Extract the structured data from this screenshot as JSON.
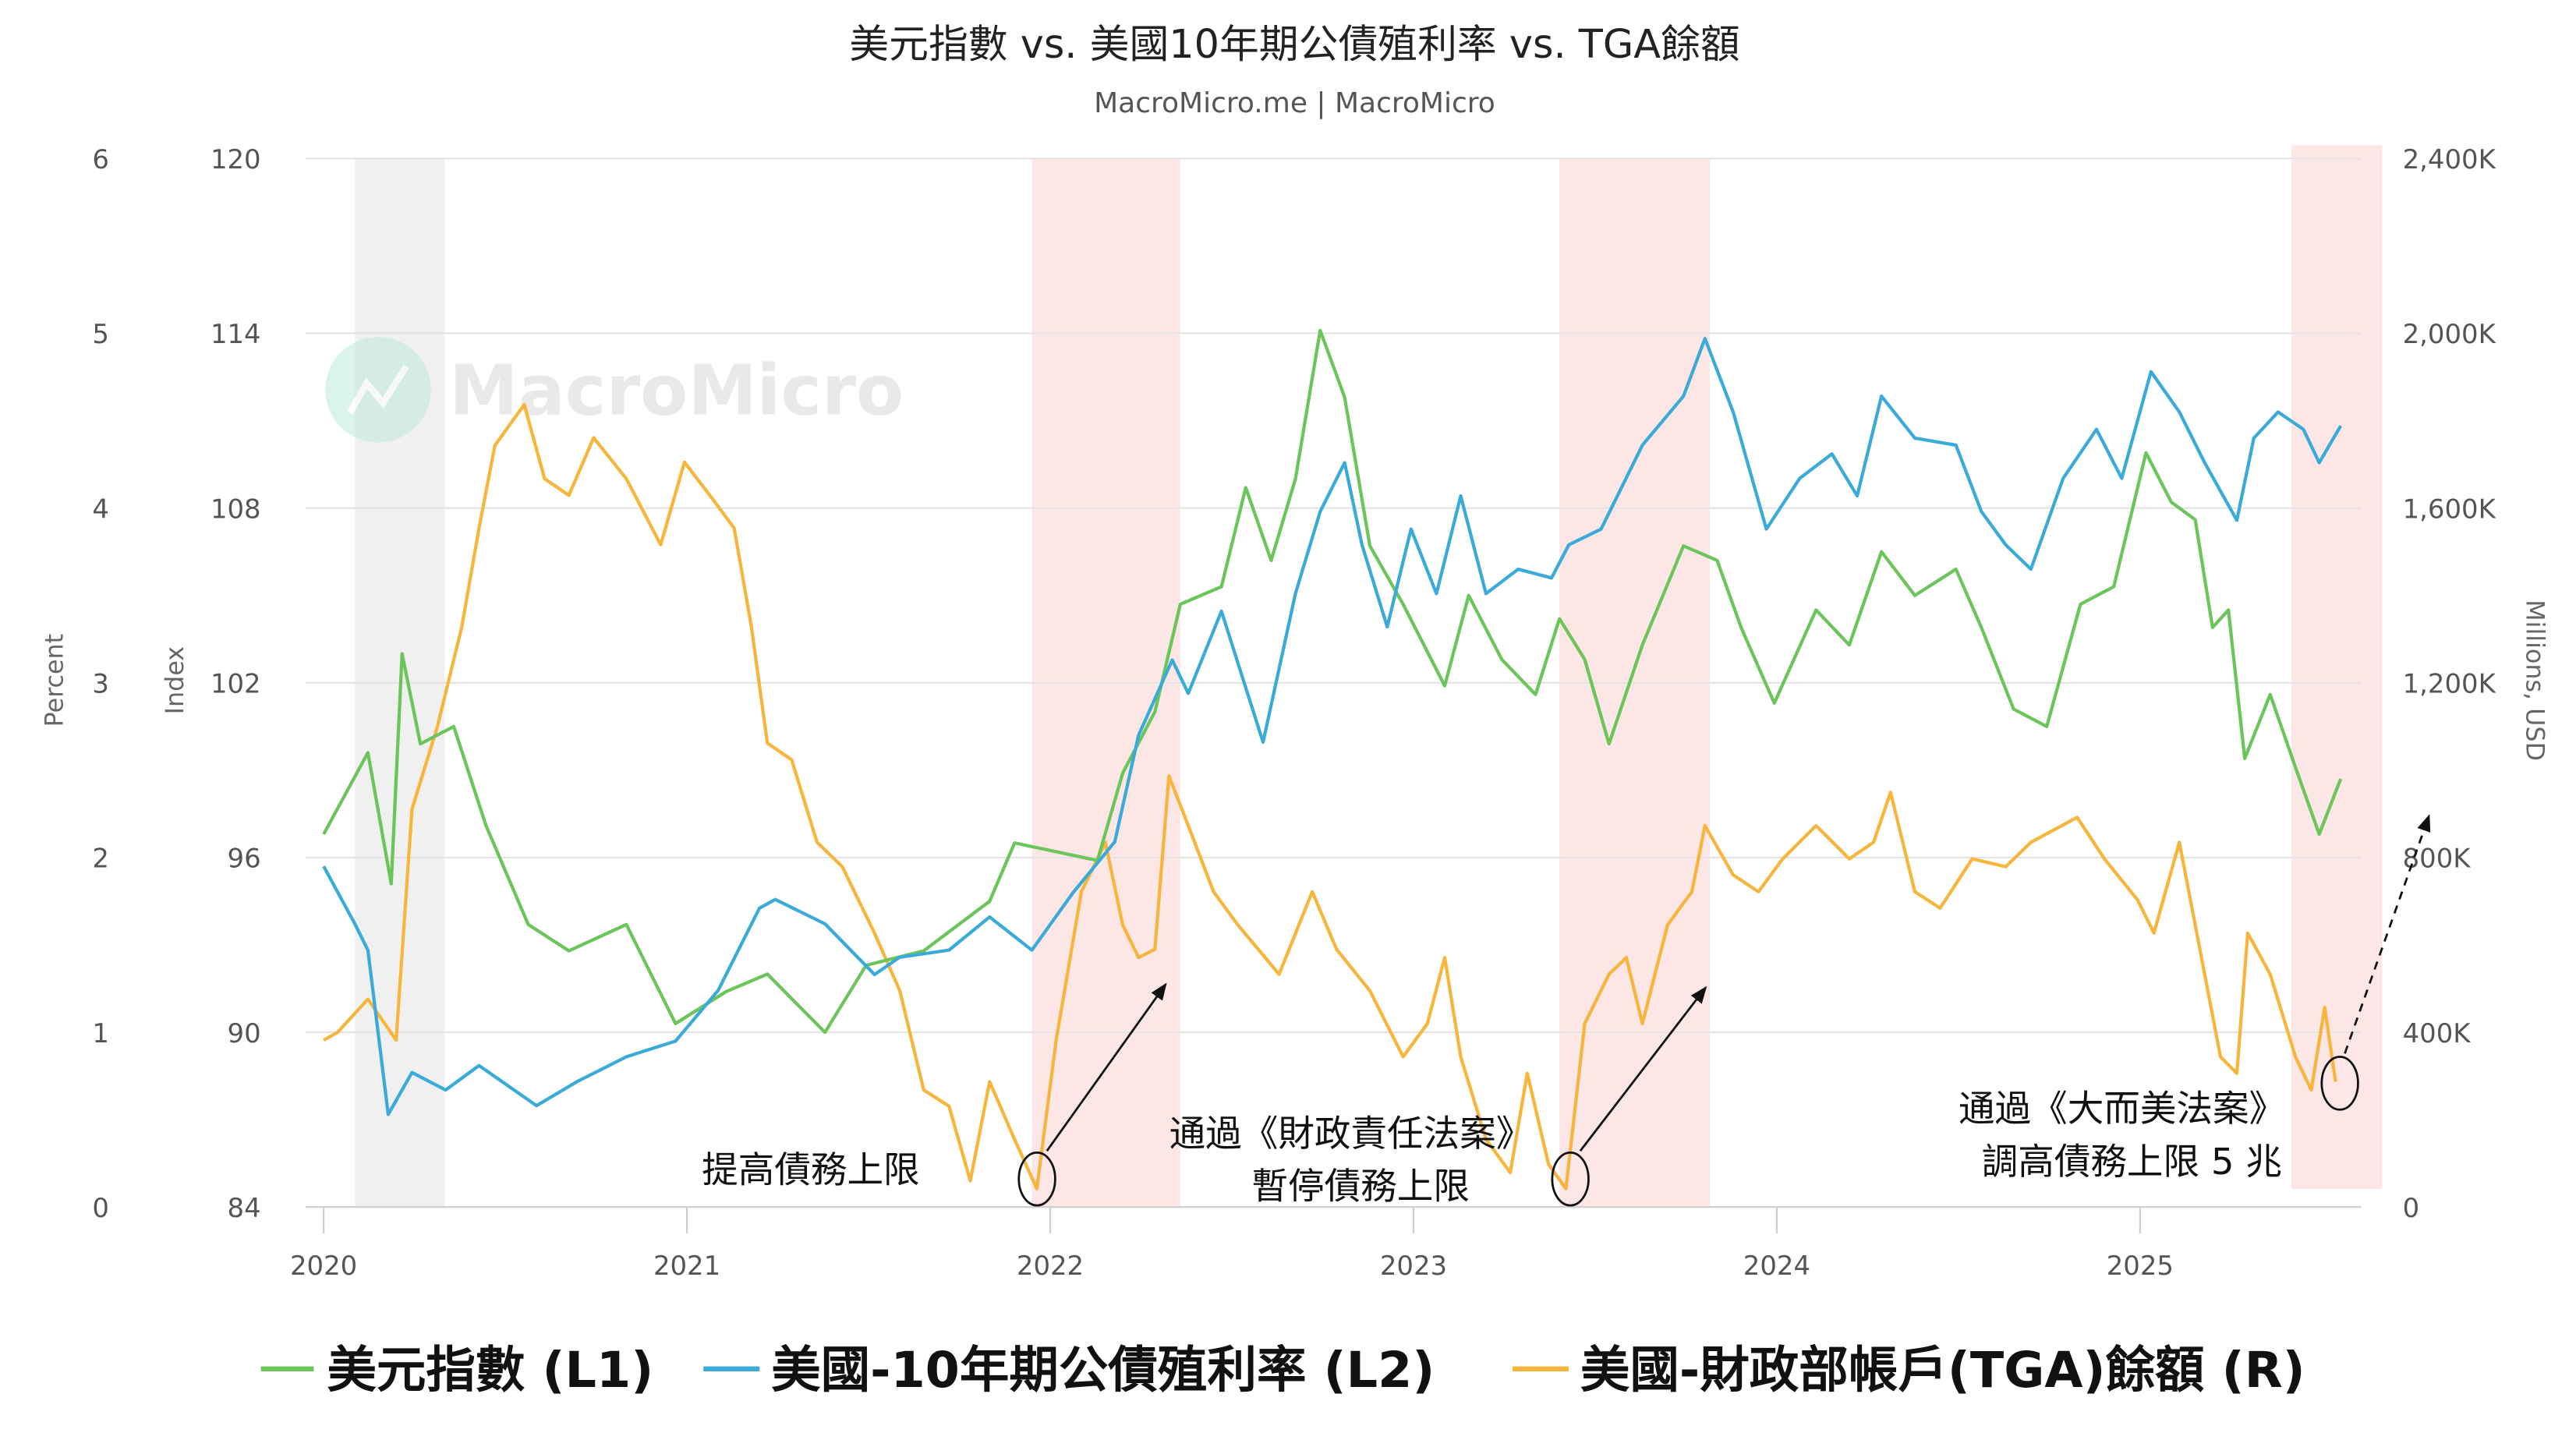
{
  "chart_data": {
    "type": "line",
    "title": "美元指數 vs. 美國10年期公債殖利率 vs. TGA餘額",
    "subtitle": "MacroMicro.me | MacroMicro",
    "watermark": "MacroMicro",
    "grid": true,
    "legend_position": "bottom",
    "x_axis": {
      "type": "date",
      "ticks": [
        "2020",
        "2021",
        "2022",
        "2023",
        "2024",
        "2025"
      ]
    },
    "axes": {
      "percent": {
        "label": "Percent",
        "range": [
          0,
          6
        ],
        "ticks": [
          "0",
          "1",
          "2",
          "3",
          "4",
          "5",
          "6"
        ]
      },
      "index": {
        "label": "Index",
        "range": [
          84,
          120
        ],
        "ticks": [
          "84",
          "90",
          "96",
          "102",
          "108",
          "114",
          "120"
        ]
      },
      "right": {
        "label": "Millions, USD",
        "range": [
          0,
          2400000
        ],
        "ticks": [
          "0",
          "400K",
          "800K",
          "1,200K",
          "1,600K",
          "2,000K",
          "2,400K"
        ]
      }
    },
    "shaded_periods": [
      {
        "start": "2020-02-02",
        "end": "2020-05-01",
        "color": "#f0f0f0"
      },
      {
        "start": "2021-12-13",
        "end": "2022-05-10",
        "color": "#fde6e6"
      },
      {
        "start": "2023-05-26",
        "end": "2023-10-25",
        "color": "#fde6e6"
      },
      {
        "start": "2025-06-01",
        "end": "2025-09-01",
        "color": "#fde6e6"
      }
    ],
    "series": [
      {
        "name": "美元指數 (L1)",
        "legend": "美元指數 (L1)",
        "axis": "index",
        "color": "#6cc55a",
        "points": [
          [
            "2020-01-01",
            96.8
          ],
          [
            "2020-02-15",
            99.6
          ],
          [
            "2020-03-08",
            95.1
          ],
          [
            "2020-03-19",
            103.0
          ],
          [
            "2020-04-07",
            99.9
          ],
          [
            "2020-05-10",
            100.5
          ],
          [
            "2020-06-12",
            97.1
          ],
          [
            "2020-07-24",
            93.7
          ],
          [
            "2020-09-04",
            92.8
          ],
          [
            "2020-11-01",
            93.7
          ],
          [
            "2020-12-20",
            90.3
          ],
          [
            "2021-02-10",
            91.4
          ],
          [
            "2021-03-21",
            92.0
          ],
          [
            "2021-05-18",
            90.0
          ],
          [
            "2021-06-29",
            92.3
          ],
          [
            "2021-08-26",
            92.8
          ],
          [
            "2021-11-01",
            94.5
          ],
          [
            "2021-11-26",
            96.5
          ],
          [
            "2022-01-07",
            96.2
          ],
          [
            "2022-02-18",
            95.9
          ],
          [
            "2022-03-13",
            98.9
          ],
          [
            "2022-04-15",
            101.0
          ],
          [
            "2022-05-10",
            104.7
          ],
          [
            "2022-06-21",
            105.3
          ],
          [
            "2022-07-15",
            108.7
          ],
          [
            "2022-08-10",
            106.2
          ],
          [
            "2022-09-04",
            109.0
          ],
          [
            "2022-09-29",
            114.1
          ],
          [
            "2022-10-23",
            111.8
          ],
          [
            "2022-11-18",
            106.7
          ],
          [
            "2022-12-21",
            104.7
          ],
          [
            "2023-02-02",
            101.9
          ],
          [
            "2023-02-26",
            105.0
          ],
          [
            "2023-03-29",
            102.8
          ],
          [
            "2023-05-02",
            101.6
          ],
          [
            "2023-05-26",
            104.2
          ],
          [
            "2023-06-21",
            102.8
          ],
          [
            "2023-07-15",
            99.9
          ],
          [
            "2023-08-18",
            103.3
          ],
          [
            "2023-09-29",
            106.7
          ],
          [
            "2023-11-02",
            106.2
          ],
          [
            "2023-11-26",
            103.9
          ],
          [
            "2023-12-29",
            101.3
          ],
          [
            "2024-02-10",
            104.5
          ],
          [
            "2024-03-13",
            103.3
          ],
          [
            "2024-04-15",
            106.5
          ],
          [
            "2024-05-18",
            105.0
          ],
          [
            "2024-06-29",
            105.9
          ],
          [
            "2024-07-24",
            103.9
          ],
          [
            "2024-08-26",
            101.1
          ],
          [
            "2024-09-29",
            100.5
          ],
          [
            "2024-11-02",
            104.7
          ],
          [
            "2024-12-05",
            105.3
          ],
          [
            "2025-01-07",
            109.9
          ],
          [
            "2025-02-02",
            108.2
          ],
          [
            "2025-02-26",
            107.6
          ],
          [
            "2025-03-13",
            103.9
          ],
          [
            "2025-03-29",
            104.5
          ],
          [
            "2025-04-15",
            99.4
          ],
          [
            "2025-05-10",
            101.6
          ],
          [
            "2025-06-05",
            99.1
          ],
          [
            "2025-06-29",
            96.8
          ],
          [
            "2025-07-20",
            98.7
          ]
        ]
      },
      {
        "name": "美國-10年期公債殖利率 (L2)",
        "legend": "美國-10年期公債殖利率 (L2)",
        "axis": "percent",
        "color": "#3aabd8",
        "points": [
          [
            "2020-01-01",
            1.95
          ],
          [
            "2020-02-02",
            1.62
          ],
          [
            "2020-02-15",
            1.47
          ],
          [
            "2020-03-05",
            0.53
          ],
          [
            "2020-03-29",
            0.77
          ],
          [
            "2020-05-02",
            0.67
          ],
          [
            "2020-06-05",
            0.81
          ],
          [
            "2020-08-02",
            0.58
          ],
          [
            "2020-09-13",
            0.72
          ],
          [
            "2020-11-01",
            0.86
          ],
          [
            "2020-12-20",
            0.95
          ],
          [
            "2021-02-02",
            1.24
          ],
          [
            "2021-03-13",
            1.71
          ],
          [
            "2021-03-29",
            1.76
          ],
          [
            "2021-05-18",
            1.62
          ],
          [
            "2021-07-07",
            1.33
          ],
          [
            "2021-08-02",
            1.43
          ],
          [
            "2021-09-21",
            1.47
          ],
          [
            "2021-11-01",
            1.66
          ],
          [
            "2021-12-13",
            1.47
          ],
          [
            "2022-01-24",
            1.8
          ],
          [
            "2022-03-05",
            2.09
          ],
          [
            "2022-03-29",
            2.7
          ],
          [
            "2022-05-02",
            3.13
          ],
          [
            "2022-05-18",
            2.94
          ],
          [
            "2022-06-21",
            3.41
          ],
          [
            "2022-08-02",
            2.66
          ],
          [
            "2022-09-04",
            3.51
          ],
          [
            "2022-09-29",
            3.98
          ],
          [
            "2022-10-23",
            4.26
          ],
          [
            "2022-11-10",
            3.79
          ],
          [
            "2022-12-05",
            3.32
          ],
          [
            "2022-12-29",
            3.88
          ],
          [
            "2023-01-24",
            3.51
          ],
          [
            "2023-02-18",
            4.07
          ],
          [
            "2023-03-13",
            3.51
          ],
          [
            "2023-04-15",
            3.65
          ],
          [
            "2023-05-18",
            3.6
          ],
          [
            "2023-06-05",
            3.79
          ],
          [
            "2023-07-07",
            3.88
          ],
          [
            "2023-08-18",
            4.36
          ],
          [
            "2023-09-29",
            4.64
          ],
          [
            "2023-10-20",
            4.97
          ],
          [
            "2023-11-18",
            4.55
          ],
          [
            "2023-12-21",
            3.88
          ],
          [
            "2024-01-24",
            4.17
          ],
          [
            "2024-02-26",
            4.31
          ],
          [
            "2024-03-21",
            4.07
          ],
          [
            "2024-04-15",
            4.64
          ],
          [
            "2024-05-18",
            4.4
          ],
          [
            "2024-06-29",
            4.36
          ],
          [
            "2024-07-24",
            3.98
          ],
          [
            "2024-08-18",
            3.79
          ],
          [
            "2024-09-13",
            3.65
          ],
          [
            "2024-10-15",
            4.17
          ],
          [
            "2024-11-18",
            4.45
          ],
          [
            "2024-12-13",
            4.17
          ],
          [
            "2025-01-12",
            4.78
          ],
          [
            "2025-02-10",
            4.55
          ],
          [
            "2025-03-05",
            4.26
          ],
          [
            "2025-04-07",
            3.93
          ],
          [
            "2025-04-24",
            4.4
          ],
          [
            "2025-05-18",
            4.55
          ],
          [
            "2025-06-13",
            4.45
          ],
          [
            "2025-06-29",
            4.26
          ],
          [
            "2025-07-20",
            4.47
          ]
        ]
      },
      {
        "name": "美國-財政部帳戶(TGA)餘額 (R)",
        "legend": "美國-財政部帳戶(TGA)餘額 (R)",
        "axis": "right",
        "color": "#f7b53b",
        "points": [
          [
            "2020-01-01",
            382000
          ],
          [
            "2020-01-15",
            400000
          ],
          [
            "2020-02-15",
            476000
          ],
          [
            "2020-03-13",
            382000
          ],
          [
            "2020-03-29",
            911000
          ],
          [
            "2020-04-24",
            1100000
          ],
          [
            "2020-05-18",
            1327000
          ],
          [
            "2020-06-05",
            1554000
          ],
          [
            "2020-06-21",
            1743000
          ],
          [
            "2020-07-20",
            1837000
          ],
          [
            "2020-08-10",
            1667000
          ],
          [
            "2020-09-04",
            1629000
          ],
          [
            "2020-09-29",
            1761000
          ],
          [
            "2020-11-01",
            1667000
          ],
          [
            "2020-12-05",
            1516000
          ],
          [
            "2020-12-29",
            1705000
          ],
          [
            "2021-01-24",
            1629000
          ],
          [
            "2021-02-18",
            1554000
          ],
          [
            "2021-03-05",
            1327000
          ],
          [
            "2021-03-21",
            1062000
          ],
          [
            "2021-04-15",
            1024000
          ],
          [
            "2021-05-10",
            835000
          ],
          [
            "2021-06-05",
            779000
          ],
          [
            "2021-07-07",
            627000
          ],
          [
            "2021-08-02",
            495000
          ],
          [
            "2021-08-26",
            268000
          ],
          [
            "2021-09-21",
            231000
          ],
          [
            "2021-10-12",
            60000
          ],
          [
            "2021-11-01",
            287000
          ],
          [
            "2021-11-26",
            155000
          ],
          [
            "2021-12-18",
            42000
          ],
          [
            "2022-01-07",
            382000
          ],
          [
            "2022-02-02",
            722000
          ],
          [
            "2022-02-26",
            835000
          ],
          [
            "2022-03-13",
            646000
          ],
          [
            "2022-03-29",
            571000
          ],
          [
            "2022-04-15",
            590000
          ],
          [
            "2022-04-29",
            987000
          ],
          [
            "2022-05-18",
            873000
          ],
          [
            "2022-06-13",
            722000
          ],
          [
            "2022-07-07",
            646000
          ],
          [
            "2022-08-18",
            533000
          ],
          [
            "2022-09-21",
            722000
          ],
          [
            "2022-10-15",
            590000
          ],
          [
            "2022-11-18",
            495000
          ],
          [
            "2022-12-21",
            344000
          ],
          [
            "2023-01-15",
            420000
          ],
          [
            "2023-02-02",
            571000
          ],
          [
            "2023-02-18",
            344000
          ],
          [
            "2023-03-13",
            155000
          ],
          [
            "2023-04-07",
            79000
          ],
          [
            "2023-04-24",
            306000
          ],
          [
            "2023-05-15",
            98000
          ],
          [
            "2023-06-02",
            42000
          ],
          [
            "2023-06-21",
            420000
          ],
          [
            "2023-07-15",
            533000
          ],
          [
            "2023-08-02",
            571000
          ],
          [
            "2023-08-18",
            420000
          ],
          [
            "2023-09-13",
            646000
          ],
          [
            "2023-10-07",
            722000
          ],
          [
            "2023-10-20",
            873000
          ],
          [
            "2023-11-18",
            760000
          ],
          [
            "2023-12-13",
            722000
          ],
          [
            "2024-01-07",
            797000
          ],
          [
            "2024-02-10",
            873000
          ],
          [
            "2024-03-13",
            797000
          ],
          [
            "2024-04-07",
            835000
          ],
          [
            "2024-04-24",
            949000
          ],
          [
            "2024-05-18",
            722000
          ],
          [
            "2024-06-13",
            684000
          ],
          [
            "2024-07-15",
            797000
          ],
          [
            "2024-08-18",
            779000
          ],
          [
            "2024-09-13",
            835000
          ],
          [
            "2024-10-29",
            892000
          ],
          [
            "2024-11-26",
            797000
          ],
          [
            "2024-12-29",
            703000
          ],
          [
            "2025-01-15",
            627000
          ],
          [
            "2025-02-10",
            835000
          ],
          [
            "2025-02-26",
            646000
          ],
          [
            "2025-03-21",
            344000
          ],
          [
            "2025-04-07",
            306000
          ],
          [
            "2025-04-18",
            627000
          ],
          [
            "2025-05-10",
            533000
          ],
          [
            "2025-06-05",
            344000
          ],
          [
            "2025-06-21",
            268000
          ],
          [
            "2025-07-04",
            457000
          ],
          [
            "2025-07-15",
            287000
          ]
        ]
      }
    ],
    "annotations": [
      {
        "text": [
          "提高債務上限"
        ],
        "date": "2021-12-18"
      },
      {
        "text": [
          "通過《財政責任法案》",
          "暫停債務上限"
        ],
        "date": "2023-06-02"
      },
      {
        "text": [
          "通過《大而美法案》",
          "調高債務上限 5 兆"
        ],
        "date": "2025-07-15"
      }
    ]
  }
}
